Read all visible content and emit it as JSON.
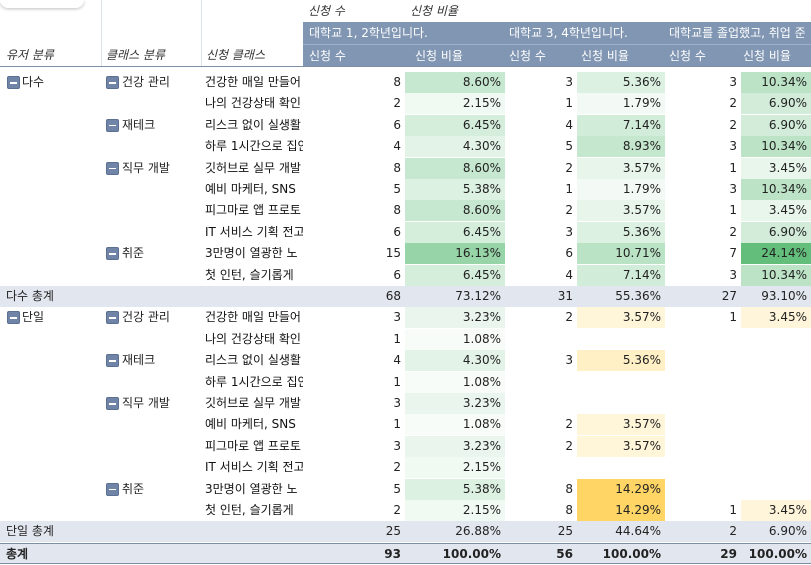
{
  "header": {
    "top_measure_1": "신청 수",
    "top_measure_2": "신청 비율",
    "groups": [
      "대학교 1, 2학년입니다.",
      "대학교 3, 4학년입니다.",
      "대학교를 졸업했고, 취업 준"
    ],
    "col_user": "유저 분류",
    "col_class_cat": "클래스 분류",
    "col_class": "신청 클래스",
    "measure_count": "신청 수",
    "measure_ratio": "신청 비율"
  },
  "colors": {
    "header_band": "#8196b3",
    "subtotal_bg": "#e2e7ef",
    "green_scale": "#63be7b",
    "yellow_scale": "#ffd666"
  },
  "rows": [
    {
      "user": "다수",
      "cat": "건강 관리",
      "cls": "건강한 매일 만들어",
      "g1c": "8",
      "g1p": "8.60%",
      "g2c": "3",
      "g2p": "5.36%",
      "g3c": "3",
      "g3p": "10.34%"
    },
    {
      "user": "",
      "cat": "",
      "cls": "나의 건강상태 확인",
      "g1c": "2",
      "g1p": "2.15%",
      "g2c": "1",
      "g2p": "1.79%",
      "g3c": "2",
      "g3p": "6.90%"
    },
    {
      "user": "",
      "cat": "재테크",
      "cls": "리스크 없이 실생활",
      "g1c": "6",
      "g1p": "6.45%",
      "g2c": "4",
      "g2p": "7.14%",
      "g3c": "2",
      "g3p": "6.90%"
    },
    {
      "user": "",
      "cat": "",
      "cls": "하루 1시간으로 집안",
      "g1c": "4",
      "g1p": "4.30%",
      "g2c": "5",
      "g2p": "8.93%",
      "g3c": "3",
      "g3p": "10.34%"
    },
    {
      "user": "",
      "cat": "직무 개발",
      "cls": "깃허브로 실무 개발",
      "g1c": "8",
      "g1p": "8.60%",
      "g2c": "2",
      "g2p": "3.57%",
      "g3c": "1",
      "g3p": "3.45%"
    },
    {
      "user": "",
      "cat": "",
      "cls": "예비 마케터, SNS",
      "g1c": "5",
      "g1p": "5.38%",
      "g2c": "1",
      "g2p": "1.79%",
      "g3c": "3",
      "g3p": "10.34%"
    },
    {
      "user": "",
      "cat": "",
      "cls": "피그마로 앱 프로토",
      "g1c": "8",
      "g1p": "8.60%",
      "g2c": "2",
      "g2p": "3.57%",
      "g3c": "1",
      "g3p": "3.45%"
    },
    {
      "user": "",
      "cat": "",
      "cls": "IT 서비스 기획 전고",
      "g1c": "6",
      "g1p": "6.45%",
      "g2c": "3",
      "g2p": "5.36%",
      "g3c": "2",
      "g3p": "6.90%"
    },
    {
      "user": "",
      "cat": "취준",
      "cls": "3만명이 열광한 노",
      "g1c": "15",
      "g1p": "16.13%",
      "g2c": "6",
      "g2p": "10.71%",
      "g3c": "7",
      "g3p": "24.14%"
    },
    {
      "user": "",
      "cat": "",
      "cls": "첫 인턴, 슬기롭게",
      "g1c": "6",
      "g1p": "6.45%",
      "g2c": "4",
      "g2p": "7.14%",
      "g3c": "3",
      "g3p": "10.34%"
    },
    {
      "subtotal": true,
      "user": "다수 총계",
      "g1c": "68",
      "g1p": "73.12%",
      "g2c": "31",
      "g2p": "55.36%",
      "g3c": "27",
      "g3p": "93.10%"
    },
    {
      "user": "단일",
      "cat": "건강 관리",
      "cls": "건강한 매일 만들어",
      "g1c": "3",
      "g1p": "3.23%",
      "g2c": "2",
      "g2p": "3.57%",
      "g3c": "1",
      "g3p": "3.45%"
    },
    {
      "user": "",
      "cat": "",
      "cls": "나의 건강상태 확인",
      "g1c": "1",
      "g1p": "1.08%",
      "g2c": "",
      "g2p": "",
      "g3c": "",
      "g3p": ""
    },
    {
      "user": "",
      "cat": "재테크",
      "cls": "리스크 없이 실생활",
      "g1c": "4",
      "g1p": "4.30%",
      "g2c": "3",
      "g2p": "5.36%",
      "g3c": "",
      "g3p": ""
    },
    {
      "user": "",
      "cat": "",
      "cls": "하루 1시간으로 집안",
      "g1c": "1",
      "g1p": "1.08%",
      "g2c": "",
      "g2p": "",
      "g3c": "",
      "g3p": ""
    },
    {
      "user": "",
      "cat": "직무 개발",
      "cls": "깃허브로 실무 개발",
      "g1c": "3",
      "g1p": "3.23%",
      "g2c": "",
      "g2p": "",
      "g3c": "",
      "g3p": ""
    },
    {
      "user": "",
      "cat": "",
      "cls": "예비 마케터, SNS",
      "g1c": "1",
      "g1p": "1.08%",
      "g2c": "2",
      "g2p": "3.57%",
      "g3c": "",
      "g3p": ""
    },
    {
      "user": "",
      "cat": "",
      "cls": "피그마로 앱 프로토",
      "g1c": "3",
      "g1p": "3.23%",
      "g2c": "2",
      "g2p": "3.57%",
      "g3c": "",
      "g3p": ""
    },
    {
      "user": "",
      "cat": "",
      "cls": "IT 서비스 기획 전고",
      "g1c": "2",
      "g1p": "2.15%",
      "g2c": "",
      "g2p": "",
      "g3c": "",
      "g3p": ""
    },
    {
      "user": "",
      "cat": "취준",
      "cls": "3만명이 열광한 노",
      "g1c": "5",
      "g1p": "5.38%",
      "g2c": "8",
      "g2p": "14.29%",
      "g3c": "",
      "g3p": ""
    },
    {
      "user": "",
      "cat": "",
      "cls": "첫 인턴, 슬기롭게",
      "g1c": "2",
      "g1p": "2.15%",
      "g2c": "8",
      "g2p": "14.29%",
      "g3c": "1",
      "g3p": "3.45%"
    },
    {
      "subtotal": true,
      "user": "단일 총계",
      "g1c": "25",
      "g1p": "26.88%",
      "g2c": "25",
      "g2p": "44.64%",
      "g3c": "2",
      "g3p": "6.90%"
    },
    {
      "total": true,
      "user": "총계",
      "g1c": "93",
      "g1p": "100.00%",
      "g2c": "56",
      "g2p": "100.00%",
      "g3c": "29",
      "g3p": "100.00%"
    }
  ]
}
